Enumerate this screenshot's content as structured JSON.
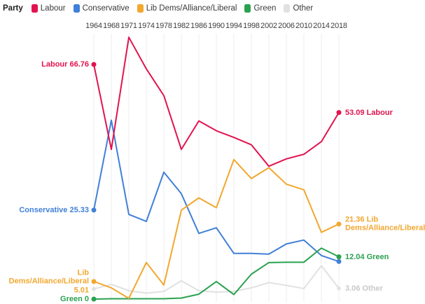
{
  "legend": {
    "title": "Party"
  },
  "chart_data": {
    "type": "line",
    "title": "",
    "xlabel": "",
    "ylabel": "",
    "x_axis_position": "top",
    "grid": "vertical",
    "legend_position": "top-left",
    "ylim": [
      0,
      80
    ],
    "x_categories": [
      "1964",
      "1968",
      "1971",
      "1974",
      "1978",
      "1982",
      "1986",
      "1990",
      "1994",
      "1998",
      "2002",
      "2006",
      "2010",
      "2014",
      "2018"
    ],
    "series": [
      {
        "name": "Labour",
        "color": "#e2134f",
        "values": [
          66.76,
          42.6,
          74.5,
          65.5,
          57.9,
          42.6,
          50.7,
          47.9,
          46.0,
          43.9,
          37.8,
          39.9,
          41.2,
          44.8,
          53.09
        ],
        "left_label": "Labour 66.76",
        "right_label": "53.09 Labour"
      },
      {
        "name": "Conservative",
        "color": "#4180d8",
        "values": [
          25.33,
          50.9,
          24.1,
          22.1,
          36.1,
          30.0,
          18.7,
          20.3,
          13.0,
          13.0,
          12.8,
          15.7,
          16.8,
          12.4,
          10.7
        ],
        "left_label": "Conservative 25.33",
        "right_label": null
      },
      {
        "name": "Lib Dems/Alliance/Liberal",
        "color": "#f2a72e",
        "values": [
          5.01,
          3.2,
          0.2,
          10.4,
          4.0,
          25.3,
          28.8,
          26.0,
          39.7,
          34.3,
          37.4,
          32.7,
          31.1,
          19.0,
          21.36
        ],
        "left_label": "Lib Dems/Alliance/Liberal\n5.01",
        "right_label": "21.36 Lib\nDems/Alliance/Liberal"
      },
      {
        "name": "Green",
        "color": "#2aa150",
        "values": [
          0,
          0.1,
          0.1,
          0.1,
          0.1,
          0.3,
          1.4,
          5.0,
          1.3,
          7.1,
          10.4,
          10.5,
          10.5,
          14.5,
          12.04
        ],
        "left_label": "Green 0",
        "right_label": "12.04 Green"
      },
      {
        "name": "Other",
        "color": "#e1e1e1",
        "label_color": "#c9c9c9",
        "values": [
          2.9,
          4.2,
          2.4,
          1.7,
          2.2,
          5.2,
          2.4,
          2.0,
          2.2,
          3.2,
          4.7,
          3.9,
          3.0,
          9.5,
          3.06
        ],
        "left_label": null,
        "right_label": "3.06 Other"
      }
    ]
  }
}
